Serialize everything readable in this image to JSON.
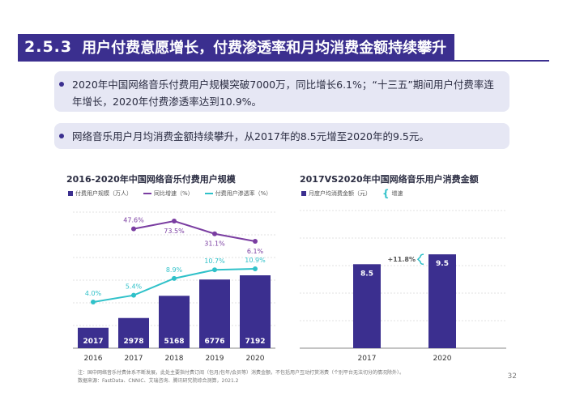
{
  "header": {
    "section_num": "2.5.3",
    "title": "用户付费意愿增长，付费渗透率和月均消费金额持续攀升"
  },
  "bullets": [
    "2020年中国网络音乐付费用户规模突破7000万，同比增长6.1%；“十三五”期间用户付费率连年增长，2020年付费渗透率达到10.9%。",
    "网络音乐用户月均消费金额持续攀升，从2017年的8.5元增至2020年的9.5元。"
  ],
  "chart_data": [
    {
      "type": "bar",
      "title": "2016-2020年中国网络音乐付费用户规模",
      "categories": [
        "2016",
        "2017",
        "2018",
        "2019",
        "2020"
      ],
      "series": [
        {
          "name": "付费用户规模（万人）",
          "type": "bar",
          "values": [
            2017,
            2978,
            5168,
            6776,
            7192
          ],
          "labels": [
            "2017",
            "2978",
            "5168",
            "6776",
            "7192"
          ]
        },
        {
          "name": "同比增速（%）",
          "type": "line",
          "values": [
            null,
            47.6,
            73.5,
            31.1,
            6.1
          ],
          "labels": [
            "",
            "47.6%",
            "73.5%",
            "31.1%",
            "6.1%"
          ]
        },
        {
          "name": "付费用户渗透率（%）",
          "type": "line",
          "values": [
            4.0,
            5.4,
            8.9,
            10.7,
            10.9
          ],
          "labels": [
            "4.0%",
            "5.4%",
            "8.9%",
            "10.7%",
            "10.9%"
          ]
        }
      ],
      "colors": {
        "bar": "#3b2f8f",
        "growth": "#7a3da1",
        "penetration": "#2fc1c9"
      },
      "legend_position": "top-left"
    },
    {
      "type": "bar",
      "title": "2017VS2020年中国网络音乐用户消费金额",
      "categories": [
        "2017",
        "2020"
      ],
      "series": [
        {
          "name": "月度户均消费金额（元）",
          "values": [
            8.5,
            9.5
          ],
          "labels": [
            "8.5",
            "9.5"
          ]
        }
      ],
      "growth_name": "增速",
      "growth_label": "+11.8%",
      "colors": {
        "bar": "#3b2f8f",
        "growth": "#2fc1c9"
      },
      "legend_position": "top-left"
    }
  ],
  "footer": {
    "note1": "注：国中网络音乐付费体系不断发展，此处主要指付费订阅（包月/包年/会员等）消费金额，不包括用户互动打赏消费（个别平台无法切分的情况除外）。",
    "note2": "数据来源：FastData、CNNIC、艾瑞咨询、腾讯研究院综合测算，2021.2",
    "page": "32"
  }
}
